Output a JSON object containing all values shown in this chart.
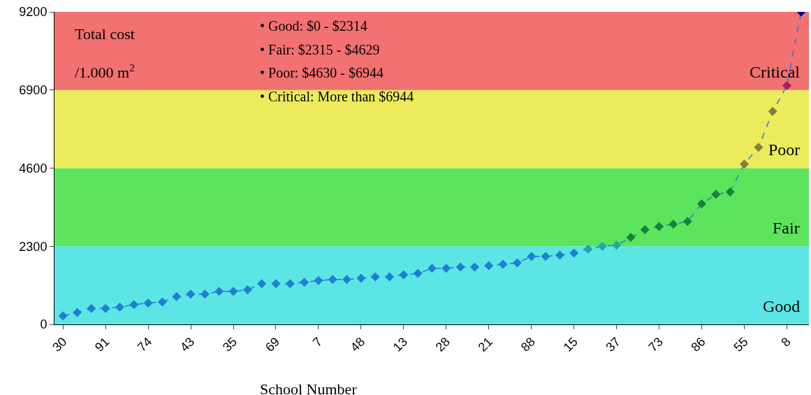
{
  "chart_data": {
    "type": "line",
    "xlabel": "School Number",
    "categories": [
      "30",
      null,
      null,
      "91",
      null,
      null,
      "74",
      null,
      null,
      "43",
      null,
      null,
      "35",
      null,
      null,
      "69",
      null,
      null,
      "7",
      null,
      null,
      "48",
      null,
      null,
      "13",
      null,
      null,
      "28",
      null,
      null,
      "21",
      null,
      null,
      "88",
      null,
      null,
      "15",
      null,
      null,
      "37",
      null,
      null,
      "73",
      null,
      null,
      "86",
      null,
      null,
      "55",
      null,
      null,
      "8",
      null
    ],
    "series": [
      {
        "color": "#1f7fd0",
        "colors": [
          "#1f7fd0",
          "#1f7fd0",
          "#1f7fd0",
          "#1f7fd0",
          "#1f7fd0",
          "#1f7fd0",
          "#1f7fd0",
          "#1f7fd0",
          "#1f7fd0",
          "#1f7fd0",
          "#1f7fd0",
          "#1f7fd0",
          "#1f7fd0",
          "#1f7fd0",
          "#1f7fd0",
          "#1f7fd0",
          "#1f7fd0",
          "#1f7fd0",
          "#1f7fd0",
          "#1f7fd0",
          "#1f7fd0",
          "#1f7fd0",
          "#1f7fd0",
          "#1f7fd0",
          "#1f7fd0",
          "#1f7fd0",
          "#1f7fd0",
          "#1f7fd0",
          "#1f7fd0",
          "#1f7fd0",
          "#1f7fd0",
          "#1f7fd0",
          "#1f7fd0",
          "#1f7fd0",
          "#1f7fd0",
          "#1f7fd0",
          "#1f7fd0",
          "#20a8a8",
          "#20a8a8",
          "#20a8a8",
          "#1a8040",
          "#1a8040",
          "#1a8040",
          "#1a8040",
          "#1a8040",
          "#1a8040",
          "#1a8040",
          "#1a8040",
          "#808040",
          "#808040",
          "#808040",
          "#a02060",
          "#000090"
        ],
        "values": [
          250,
          350,
          470,
          470,
          510,
          580,
          630,
          660,
          820,
          890,
          890,
          970,
          970,
          1020,
          1200,
          1200,
          1200,
          1240,
          1290,
          1320,
          1320,
          1360,
          1400,
          1400,
          1460,
          1500,
          1650,
          1650,
          1690,
          1690,
          1730,
          1770,
          1810,
          2000,
          2000,
          2040,
          2100,
          2220,
          2300,
          2330,
          2560,
          2790,
          2880,
          2950,
          3030,
          3550,
          3830,
          3900,
          4720,
          5210,
          6270,
          7030,
          9200
        ]
      }
    ],
    "ylim": [
      0,
      9200
    ],
    "yticks": [
      0,
      2300,
      4600,
      6900,
      9200
    ],
    "bands": [
      {
        "axis": "y",
        "from": 0,
        "to": 2300,
        "label": "Good",
        "color": "#40e0e0"
      },
      {
        "axis": "y",
        "from": 2300,
        "to": 4600,
        "label": "Fair",
        "color": "#40e040"
      },
      {
        "axis": "y",
        "from": 4600,
        "to": 6900,
        "label": "Poor",
        "color": "#e8e840"
      },
      {
        "axis": "y",
        "from": 6900,
        "to": 9200,
        "label": "Critical",
        "color": "#f05858"
      }
    ],
    "annotations": [
      "Total cost",
      "/1.000 m$^{2}$",
      "• Good: $0 - $2314",
      "• Fair: $2315 - $4629",
      "• Poor: $4630 - $6944",
      "• Critical: More than $6944"
    ],
    "marker": "diamond",
    "line_style": "dashed",
    "grid": false
  }
}
